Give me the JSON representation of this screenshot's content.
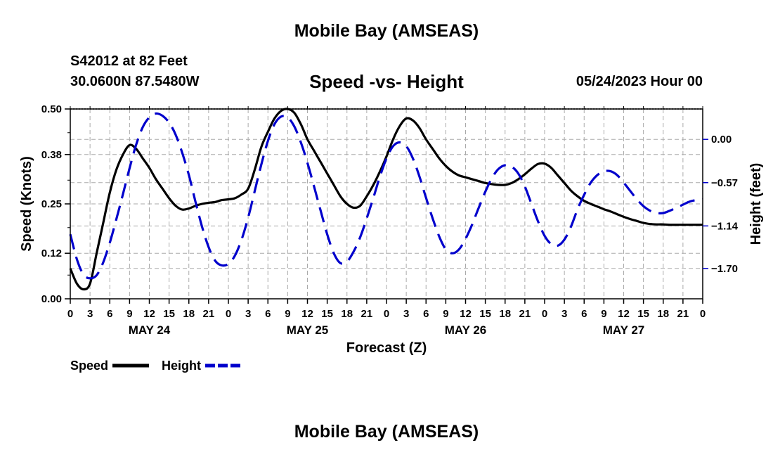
{
  "header": {
    "title": "Mobile Bay (AMSEAS)",
    "station": "S42012 at 82 Feet",
    "coords": "30.0600N  87.5480W",
    "subtitle": "Speed -vs- Height",
    "datetime": "05/24/2023 Hour 00"
  },
  "footer": {
    "title": "Mobile Bay (AMSEAS)"
  },
  "chart_data": {
    "type": "line",
    "xlabel": "Forecast (Z)",
    "ylabel_left": "Speed (Knots)",
    "ylabel_right": "Height (feet)",
    "x_range_hours": [
      0,
      96
    ],
    "x_ticks": [
      "0",
      "3",
      "6",
      "9",
      "12",
      "15",
      "18",
      "21",
      "0",
      "3",
      "6",
      "9",
      "12",
      "15",
      "18",
      "21",
      "0",
      "3",
      "6",
      "9",
      "12",
      "15",
      "18",
      "21",
      "0",
      "3",
      "6",
      "9",
      "12",
      "15",
      "18",
      "21",
      "0"
    ],
    "date_labels": [
      {
        "hour": 12,
        "label": "MAY 24"
      },
      {
        "hour": 36,
        "label": "MAY 25"
      },
      {
        "hour": 60,
        "label": "MAY 26"
      },
      {
        "hour": 84,
        "label": "MAY 27"
      }
    ],
    "y_left": {
      "range": [
        0.0,
        0.5
      ],
      "ticks": [
        "0.00",
        "0.12",
        "0.25",
        "0.38",
        "0.50"
      ]
    },
    "y_right": {
      "range": [
        -2.1,
        0.4
      ],
      "ticks": [
        "0.00",
        "-0.57",
        "-1.14",
        "-1.70"
      ]
    },
    "grid": true,
    "series": [
      {
        "name": "Speed",
        "axis": "left",
        "color": "#000000",
        "dash": "solid",
        "x": [
          0,
          1,
          2,
          3,
          4,
          5,
          6,
          7,
          8,
          9,
          10,
          11,
          12,
          13,
          14,
          15,
          16,
          17,
          18,
          19,
          20,
          21,
          22,
          23,
          24,
          25,
          26,
          27,
          28,
          29,
          30,
          31,
          32,
          33,
          34,
          35,
          36,
          37,
          38,
          39,
          40,
          41,
          42,
          43,
          44,
          45,
          46,
          47,
          48,
          49,
          50,
          51,
          52,
          53,
          54,
          55,
          56,
          57,
          58,
          59,
          60,
          61,
          62,
          63,
          64,
          65,
          66,
          67,
          68,
          69,
          70,
          71,
          72,
          73,
          74,
          75,
          76,
          77,
          78,
          79,
          80,
          81,
          82,
          83,
          84,
          85,
          86,
          87,
          88,
          89,
          90,
          91,
          92,
          93,
          94,
          95,
          96
        ],
        "values": [
          0.08,
          0.04,
          0.025,
          0.04,
          0.12,
          0.2,
          0.28,
          0.34,
          0.38,
          0.405,
          0.395,
          0.37,
          0.345,
          0.315,
          0.29,
          0.265,
          0.245,
          0.235,
          0.238,
          0.245,
          0.25,
          0.253,
          0.255,
          0.26,
          0.262,
          0.265,
          0.275,
          0.29,
          0.34,
          0.4,
          0.44,
          0.475,
          0.495,
          0.5,
          0.49,
          0.46,
          0.42,
          0.39,
          0.36,
          0.33,
          0.3,
          0.27,
          0.25,
          0.24,
          0.245,
          0.27,
          0.3,
          0.335,
          0.375,
          0.42,
          0.455,
          0.475,
          0.47,
          0.45,
          0.42,
          0.395,
          0.37,
          0.35,
          0.335,
          0.325,
          0.32,
          0.315,
          0.31,
          0.305,
          0.302,
          0.3,
          0.3,
          0.305,
          0.315,
          0.328,
          0.343,
          0.355,
          0.356,
          0.345,
          0.325,
          0.305,
          0.285,
          0.27,
          0.258,
          0.25,
          0.243,
          0.236,
          0.23,
          0.223,
          0.216,
          0.21,
          0.205,
          0.2,
          0.197,
          0.196,
          0.196,
          0.195,
          0.195,
          0.195,
          0.195,
          0.195,
          0.195
        ]
      },
      {
        "name": "Height",
        "axis": "right",
        "color": "#0000cc",
        "dash": "dashed",
        "x": [
          0,
          1,
          2,
          3,
          4,
          5,
          6,
          7,
          8,
          9,
          10,
          11,
          12,
          13,
          14,
          15,
          16,
          17,
          18,
          19,
          20,
          21,
          22,
          23,
          24,
          25,
          26,
          27,
          28,
          29,
          30,
          31,
          32,
          33,
          34,
          35,
          36,
          37,
          38,
          39,
          40,
          41,
          42,
          43,
          44,
          45,
          46,
          47,
          48,
          49,
          50,
          51,
          52,
          53,
          54,
          55,
          56,
          57,
          58,
          59,
          60,
          61,
          62,
          63,
          64,
          65,
          66,
          67,
          68,
          69,
          70,
          71,
          72,
          73,
          74,
          75,
          76,
          77,
          78,
          79,
          80,
          81,
          82,
          83,
          84,
          85,
          86,
          87,
          88,
          89,
          90,
          91,
          92,
          93,
          94,
          95,
          96
        ],
        "values": [
          -1.25,
          -1.58,
          -1.78,
          -1.83,
          -1.79,
          -1.62,
          -1.36,
          -1.05,
          -0.72,
          -0.38,
          -0.07,
          0.16,
          0.29,
          0.34,
          0.31,
          0.22,
          0.06,
          -0.18,
          -0.47,
          -0.82,
          -1.15,
          -1.42,
          -1.6,
          -1.66,
          -1.64,
          -1.53,
          -1.32,
          -1.03,
          -0.68,
          -0.33,
          -0.02,
          0.2,
          0.3,
          0.29,
          0.17,
          -0.04,
          -0.31,
          -0.62,
          -0.94,
          -1.25,
          -1.5,
          -1.63,
          -1.61,
          -1.48,
          -1.29,
          -1.04,
          -0.77,
          -0.49,
          -0.25,
          -0.09,
          -0.04,
          -0.09,
          -0.25,
          -0.49,
          -0.77,
          -1.04,
          -1.28,
          -1.45,
          -1.5,
          -1.45,
          -1.31,
          -1.12,
          -0.9,
          -0.69,
          -0.51,
          -0.39,
          -0.34,
          -0.36,
          -0.45,
          -0.62,
          -0.85,
          -1.08,
          -1.27,
          -1.38,
          -1.4,
          -1.32,
          -1.15,
          -0.92,
          -0.73,
          -0.57,
          -0.47,
          -0.42,
          -0.42,
          -0.47,
          -0.57,
          -0.68,
          -0.79,
          -0.88,
          -0.94,
          -0.97,
          -0.97,
          -0.94,
          -0.9,
          -0.86,
          -0.82,
          -0.8,
          -0.79
        ]
      }
    ]
  }
}
